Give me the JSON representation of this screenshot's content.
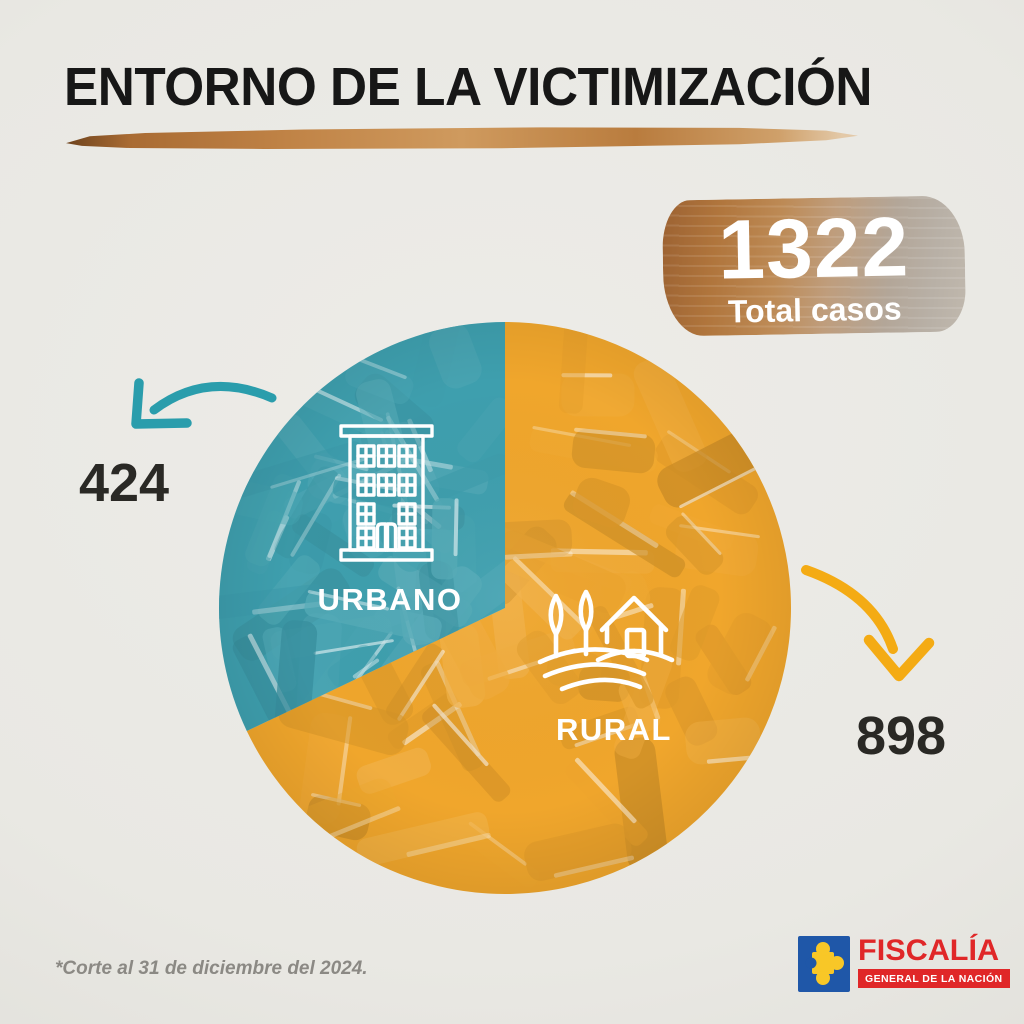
{
  "title": "ENTORNO DE LA VICTIMIZACIÓN",
  "total_badge": {
    "value": "1322",
    "label": "Total casos"
  },
  "chart_data": {
    "type": "pie",
    "title": "ENTORNO DE LA VICTIMIZACIÓN",
    "total": 1322,
    "total_label": "Total casos",
    "start_angle": "top",
    "legend_position": "labels-inside-slices",
    "slices": [
      {
        "label": "URBANO",
        "value": 424,
        "color": "#3e9fae",
        "icon": "building-icon",
        "callout": "left"
      },
      {
        "label": "RURAL",
        "value": 898,
        "color": "#f0a62c",
        "icon": "farm-icon",
        "callout": "right"
      }
    ]
  },
  "footnote": "*Corte al 31 de diciembre del 2024.",
  "logo": {
    "brand": "FISCALÍA",
    "subtitle": "GENERAL DE LA NACIÓN"
  },
  "colors": {
    "background": "#e9e8e3",
    "urbano_teal": "#3e9fae",
    "rural_orange": "#f0a62c",
    "urbano_arrow": "#2a9dac",
    "rural_arrow": "#f4ab14",
    "brush_brown": "#b5773b",
    "title_text": "#171717",
    "value_text": "#2a2925",
    "badge_text": "#ffffff",
    "footnote_text": "#8b8984",
    "logo_blue": "#1f57a8",
    "logo_yellow": "#f8c727",
    "logo_red": "#e02728"
  }
}
